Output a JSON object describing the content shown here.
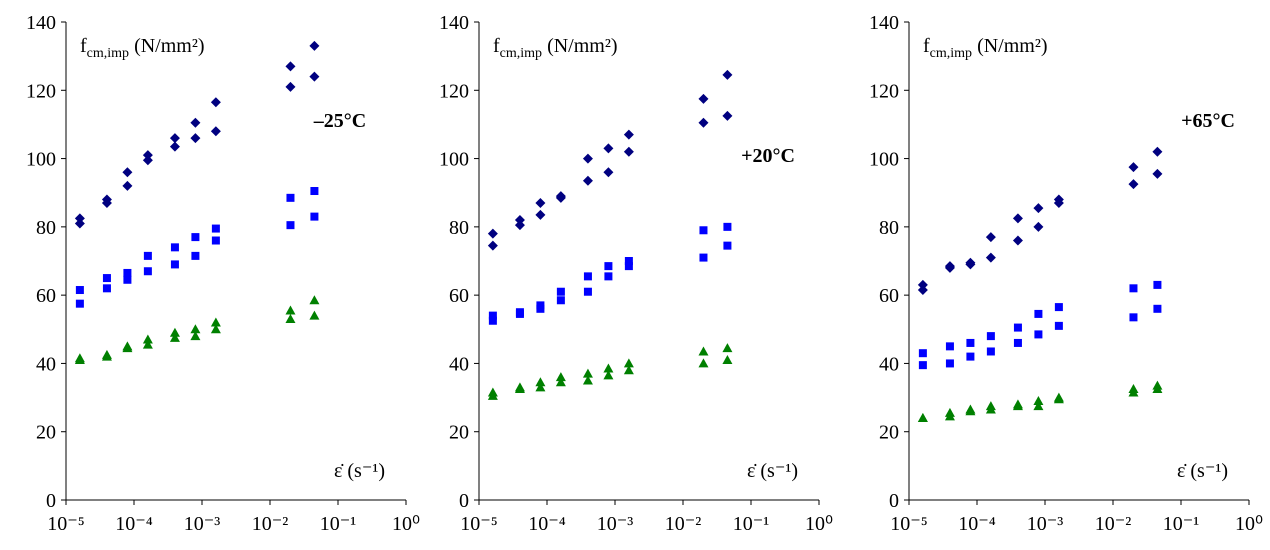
{
  "chart_data": [
    {
      "type": "scatter",
      "log_x": true,
      "y_label": [
        "f",
        "cm,imp",
        " (N/mm²)"
      ],
      "x_label": "ε̇  (s⁻¹)",
      "annotation": "–25°C",
      "xlim": [
        1e-05,
        1
      ],
      "ylim": [
        0,
        140
      ],
      "xticks": [
        {
          "value": 1e-05,
          "label": "10⁻⁵"
        },
        {
          "value": 0.0001,
          "label": "10⁻⁴"
        },
        {
          "value": 0.001,
          "label": "10⁻³"
        },
        {
          "value": 0.01,
          "label": "10⁻²"
        },
        {
          "value": 0.1,
          "label": "10⁻¹"
        },
        {
          "value": 1,
          "label": "10⁰"
        }
      ],
      "yticks": [
        0,
        20,
        40,
        60,
        80,
        100,
        120,
        140
      ],
      "series": [
        {
          "marker": "diamond",
          "color": "#000080",
          "x": [
            1.6e-05,
            1.6e-05,
            4e-05,
            4e-05,
            8e-05,
            8e-05,
            0.00016,
            0.00016,
            0.0004,
            0.0004,
            0.0008,
            0.0008,
            0.0016,
            0.0016,
            0.02,
            0.02,
            0.045,
            0.045
          ],
          "values": [
            82.5,
            81,
            88,
            87,
            96,
            92,
            101,
            99.5,
            106,
            103.5,
            110.5,
            106,
            116.5,
            108,
            127,
            121,
            133,
            124
          ]
        },
        {
          "marker": "square",
          "color": "#0000ff",
          "x": [
            1.6e-05,
            1.6e-05,
            4e-05,
            4e-05,
            8e-05,
            8e-05,
            0.00016,
            0.00016,
            0.0004,
            0.0004,
            0.0008,
            0.0008,
            0.0016,
            0.0016,
            0.02,
            0.02,
            0.045,
            0.045
          ],
          "values": [
            61.5,
            57.5,
            65,
            62,
            66.5,
            64.5,
            71.5,
            67,
            74,
            69,
            77,
            71.5,
            79.5,
            76,
            88.5,
            80.5,
            90.5,
            83
          ]
        },
        {
          "marker": "triangle",
          "color": "#008000",
          "x": [
            1.6e-05,
            1.6e-05,
            4e-05,
            4e-05,
            8e-05,
            8e-05,
            0.00016,
            0.00016,
            0.0004,
            0.0004,
            0.0008,
            0.0008,
            0.0016,
            0.0016,
            0.02,
            0.02,
            0.045,
            0.045
          ],
          "values": [
            41.5,
            41,
            42.5,
            42,
            45,
            44.5,
            47,
            45.5,
            49,
            47.5,
            50,
            48,
            52,
            50,
            55.5,
            53,
            58.5,
            54
          ]
        }
      ]
    },
    {
      "type": "scatter",
      "log_x": true,
      "y_label": [
        "f",
        "cm,imp",
        " (N/mm²)"
      ],
      "x_label": "ε̇  (s⁻¹)",
      "annotation": "+20°C",
      "xlim": [
        1e-05,
        1
      ],
      "ylim": [
        0,
        140
      ],
      "xticks": [
        {
          "value": 1e-05,
          "label": "10⁻⁵"
        },
        {
          "value": 0.0001,
          "label": "10⁻⁴"
        },
        {
          "value": 0.001,
          "label": "10⁻³"
        },
        {
          "value": 0.01,
          "label": "10⁻²"
        },
        {
          "value": 0.1,
          "label": "10⁻¹"
        },
        {
          "value": 1,
          "label": "10⁰"
        }
      ],
      "yticks": [
        0,
        20,
        40,
        60,
        80,
        100,
        120,
        140
      ],
      "series": [
        {
          "marker": "diamond",
          "color": "#000080",
          "x": [
            1.6e-05,
            1.6e-05,
            4e-05,
            4e-05,
            8e-05,
            8e-05,
            0.00016,
            0.00016,
            0.0004,
            0.0004,
            0.0008,
            0.0008,
            0.0016,
            0.0016,
            0.02,
            0.02,
            0.045,
            0.045
          ],
          "values": [
            78,
            74.5,
            82,
            80.5,
            87,
            83.5,
            89,
            88.5,
            100,
            93.5,
            103,
            96,
            107,
            102,
            117.5,
            110.5,
            124.5,
            112.5
          ]
        },
        {
          "marker": "square",
          "color": "#0000ff",
          "x": [
            1.6e-05,
            1.6e-05,
            4e-05,
            4e-05,
            8e-05,
            8e-05,
            0.00016,
            0.00016,
            0.0004,
            0.0004,
            0.0008,
            0.0008,
            0.0016,
            0.0016,
            0.02,
            0.02,
            0.045,
            0.045
          ],
          "values": [
            54,
            52.5,
            55,
            54.5,
            57,
            56,
            61,
            58.5,
            65.5,
            61,
            68.5,
            65.5,
            70,
            68.5,
            79,
            71,
            80,
            74.5
          ]
        },
        {
          "marker": "triangle",
          "color": "#008000",
          "x": [
            1.6e-05,
            1.6e-05,
            4e-05,
            4e-05,
            8e-05,
            8e-05,
            0.00016,
            0.00016,
            0.0004,
            0.0004,
            0.0008,
            0.0008,
            0.0016,
            0.0016,
            0.02,
            0.02,
            0.045,
            0.045
          ],
          "values": [
            31.5,
            30.5,
            33,
            32.5,
            34.5,
            33,
            36,
            34.5,
            37,
            35,
            38.5,
            36.5,
            40,
            38,
            43.5,
            40,
            44.5,
            41
          ]
        }
      ]
    },
    {
      "type": "scatter",
      "log_x": true,
      "y_label": [
        "f",
        "cm,imp",
        " (N/mm²)"
      ],
      "x_label": "ε̇  (s⁻¹)",
      "annotation": "+65°C",
      "xlim": [
        1e-05,
        1
      ],
      "ylim": [
        0,
        140
      ],
      "xticks": [
        {
          "value": 1e-05,
          "label": "10⁻⁵"
        },
        {
          "value": 0.0001,
          "label": "10⁻⁴"
        },
        {
          "value": 0.001,
          "label": "10⁻³"
        },
        {
          "value": 0.01,
          "label": "10⁻²"
        },
        {
          "value": 0.1,
          "label": "10⁻¹"
        },
        {
          "value": 1,
          "label": "10⁰"
        }
      ],
      "yticks": [
        0,
        20,
        40,
        60,
        80,
        100,
        120,
        140
      ],
      "series": [
        {
          "marker": "diamond",
          "color": "#000080",
          "x": [
            1.6e-05,
            1.6e-05,
            4e-05,
            4e-05,
            8e-05,
            8e-05,
            0.00016,
            0.00016,
            0.0004,
            0.0004,
            0.0008,
            0.0008,
            0.0016,
            0.0016,
            0.02,
            0.02,
            0.045,
            0.045
          ],
          "values": [
            63,
            61.5,
            68.5,
            68,
            69.5,
            69,
            77,
            71,
            82.5,
            76,
            85.5,
            80,
            88,
            87,
            97.5,
            92.5,
            102,
            95.5
          ]
        },
        {
          "marker": "square",
          "color": "#0000ff",
          "x": [
            1.6e-05,
            1.6e-05,
            4e-05,
            4e-05,
            8e-05,
            8e-05,
            0.00016,
            0.00016,
            0.0004,
            0.0004,
            0.0008,
            0.0008,
            0.0016,
            0.0016,
            0.02,
            0.02,
            0.045,
            0.045
          ],
          "values": [
            43,
            39.5,
            45,
            40,
            46,
            42,
            48,
            43.5,
            50.5,
            46,
            54.5,
            48.5,
            56.5,
            51,
            62,
            53.5,
            63,
            56
          ]
        },
        {
          "marker": "triangle",
          "color": "#008000",
          "x": [
            1.6e-05,
            1.6e-05,
            4e-05,
            4e-05,
            8e-05,
            8e-05,
            0.00016,
            0.00016,
            0.0004,
            0.0004,
            0.0008,
            0.0008,
            0.0016,
            0.0016,
            0.02,
            0.02,
            0.045,
            0.045
          ],
          "values": [
            24,
            24,
            25.5,
            24.5,
            26.5,
            26,
            27.5,
            26.5,
            28,
            27.5,
            29,
            27.5,
            30,
            29.5,
            32.5,
            31.5,
            33.5,
            32.5
          ]
        }
      ]
    }
  ]
}
